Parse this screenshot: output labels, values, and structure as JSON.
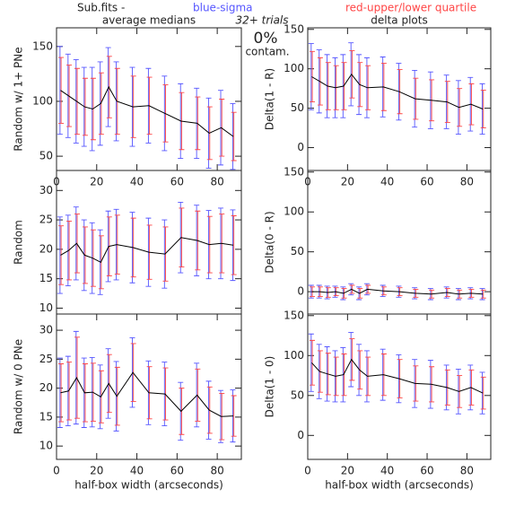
{
  "header": {
    "prefix": "Sub.fits -",
    "sigma_label": "blue-sigma",
    "sigma_color": "#5555ff",
    "quartile_label": "red-upper/lower quartile",
    "quartile_color": "#ff4444",
    "trials": "32+ trials",
    "contamination": "0%",
    "contamination_label": "contam."
  },
  "chart_data": [
    {
      "type": "line",
      "title": "average medians",
      "y_label": "Random w/ 1+ PNe",
      "color": "#000000",
      "x": [
        2,
        6,
        10,
        14,
        18,
        22,
        26,
        30,
        38,
        46,
        54,
        62,
        70,
        76,
        82,
        88
      ],
      "values": [
        110,
        105,
        100,
        95,
        93,
        98,
        113,
        100,
        95,
        96,
        89,
        82,
        80,
        71,
        76,
        68
      ],
      "sigma_errors": [
        40,
        38,
        38,
        36,
        38,
        38,
        36,
        36,
        36,
        34,
        34,
        34,
        32,
        32,
        34,
        30
      ],
      "quartile_errors": [
        30,
        28,
        30,
        26,
        28,
        28,
        28,
        30,
        28,
        26,
        26,
        26,
        24,
        24,
        26,
        22
      ],
      "xlim": [
        0,
        92
      ],
      "xticks": [
        0,
        20,
        40,
        60,
        80
      ],
      "ylim": [
        37,
        167
      ],
      "yticks": [
        50,
        100,
        150
      ]
    },
    {
      "type": "line",
      "title": "delta plots",
      "y_label": "Delta(1 - R)",
      "color": "#000000",
      "x": [
        2,
        6,
        10,
        14,
        18,
        22,
        26,
        30,
        38,
        46,
        54,
        62,
        70,
        76,
        82,
        88
      ],
      "values": [
        90,
        84,
        78,
        76,
        78,
        93,
        80,
        76,
        77,
        71,
        62,
        60,
        58,
        51,
        55,
        49
      ],
      "sigma_errors": [
        42,
        40,
        40,
        38,
        40,
        40,
        38,
        38,
        38,
        36,
        36,
        36,
        34,
        34,
        34,
        32
      ],
      "quartile_errors": [
        32,
        30,
        30,
        28,
        30,
        30,
        28,
        28,
        30,
        28,
        26,
        26,
        26,
        24,
        26,
        24
      ],
      "xlim": [
        0,
        92
      ],
      "xticks": [
        0,
        20,
        40,
        60,
        80
      ],
      "ylim": [
        -29,
        152
      ],
      "yticks": [
        0,
        50,
        100,
        150
      ]
    },
    {
      "type": "line",
      "y_label": "Random",
      "color": "#000000",
      "x": [
        2,
        6,
        10,
        14,
        18,
        22,
        26,
        30,
        38,
        46,
        54,
        62,
        70,
        76,
        82,
        88
      ],
      "values": [
        19,
        19.8,
        21,
        19,
        18.5,
        17.8,
        20.5,
        20.8,
        20.3,
        19.5,
        19.2,
        22,
        21.5,
        20.8,
        21,
        20.7
      ],
      "sigma_errors": [
        6.5,
        6,
        6.2,
        6,
        6,
        5.5,
        6,
        6,
        6,
        5.8,
        5.8,
        6,
        6,
        5.8,
        6,
        6
      ],
      "quartile_errors": [
        5,
        5,
        5,
        4.8,
        4.8,
        4.5,
        5,
        5,
        5,
        4.6,
        4.6,
        5,
        5,
        4.8,
        5,
        5
      ],
      "xlim": [
        0,
        92
      ],
      "ylim": [
        9,
        33.4
      ],
      "yticks": [
        10,
        15,
        20,
        25,
        30
      ]
    },
    {
      "type": "line",
      "y_label": "Delta(0 - R)",
      "color": "#000000",
      "x": [
        2,
        6,
        10,
        14,
        18,
        22,
        26,
        30,
        38,
        46,
        54,
        62,
        70,
        76,
        82,
        88
      ],
      "values": [
        0,
        0,
        -1,
        0,
        -2,
        3,
        -2,
        3,
        1,
        0,
        -2,
        -3,
        -1,
        -3,
        -2,
        -3
      ],
      "sigma_errors": [
        8,
        8,
        8,
        7,
        8,
        7,
        8,
        7,
        7,
        7,
        7,
        7,
        7,
        7,
        7,
        7
      ],
      "quartile_errors": [
        6,
        6,
        6,
        5,
        6,
        5,
        6,
        5,
        5,
        5,
        5,
        5,
        5,
        5,
        5,
        5
      ],
      "xlim": [
        0,
        92
      ],
      "ylim": [
        -28,
        152
      ],
      "yticks": [
        0,
        50,
        100,
        150
      ]
    },
    {
      "type": "line",
      "y_label": "Random w/ 0 PNe",
      "x_label": "half-box width (arcseconds)",
      "color": "#000000",
      "x": [
        2,
        6,
        10,
        14,
        18,
        22,
        26,
        30,
        38,
        46,
        54,
        62,
        70,
        76,
        82,
        88
      ],
      "values": [
        19.2,
        19.5,
        21.8,
        19.2,
        19.3,
        18.5,
        20.8,
        18.6,
        22.7,
        19.2,
        19,
        16,
        18.8,
        16.2,
        15.1,
        15.2
      ],
      "sigma_errors": [
        6,
        6,
        8,
        6,
        6,
        5.5,
        6,
        6,
        6,
        5.5,
        5.5,
        5,
        5.5,
        5,
        4.5,
        4.5
      ],
      "quartile_errors": [
        5,
        5,
        7,
        5,
        5,
        4.5,
        5,
        5,
        5,
        4.5,
        4.5,
        4,
        4.5,
        4,
        4,
        3.5
      ],
      "xlim": [
        0,
        92
      ],
      "xticks": [
        0,
        20,
        40,
        60,
        80
      ],
      "ylim": [
        7.7,
        32.8
      ],
      "yticks": [
        10,
        15,
        20,
        25,
        30
      ]
    },
    {
      "type": "line",
      "y_label": "Delta(1 - 0)",
      "x_label": "half-box width (arcseconds)",
      "color": "#000000",
      "x": [
        2,
        6,
        10,
        14,
        18,
        22,
        26,
        30,
        38,
        46,
        54,
        62,
        70,
        76,
        82,
        88
      ],
      "values": [
        91,
        80,
        77,
        74,
        76,
        95,
        82,
        74,
        76,
        71,
        65,
        64,
        60,
        55,
        60,
        53
      ],
      "sigma_errors": [
        36,
        34,
        34,
        32,
        34,
        34,
        32,
        32,
        32,
        30,
        30,
        30,
        28,
        28,
        28,
        26
      ],
      "quartile_errors": [
        28,
        26,
        26,
        24,
        26,
        26,
        24,
        24,
        26,
        24,
        22,
        22,
        22,
        20,
        22,
        20
      ],
      "xlim": [
        0,
        92
      ],
      "xticks": [
        0,
        20,
        40,
        60,
        80
      ],
      "ylim": [
        -30,
        152
      ],
      "yticks": [
        0,
        50,
        100,
        150
      ]
    }
  ]
}
